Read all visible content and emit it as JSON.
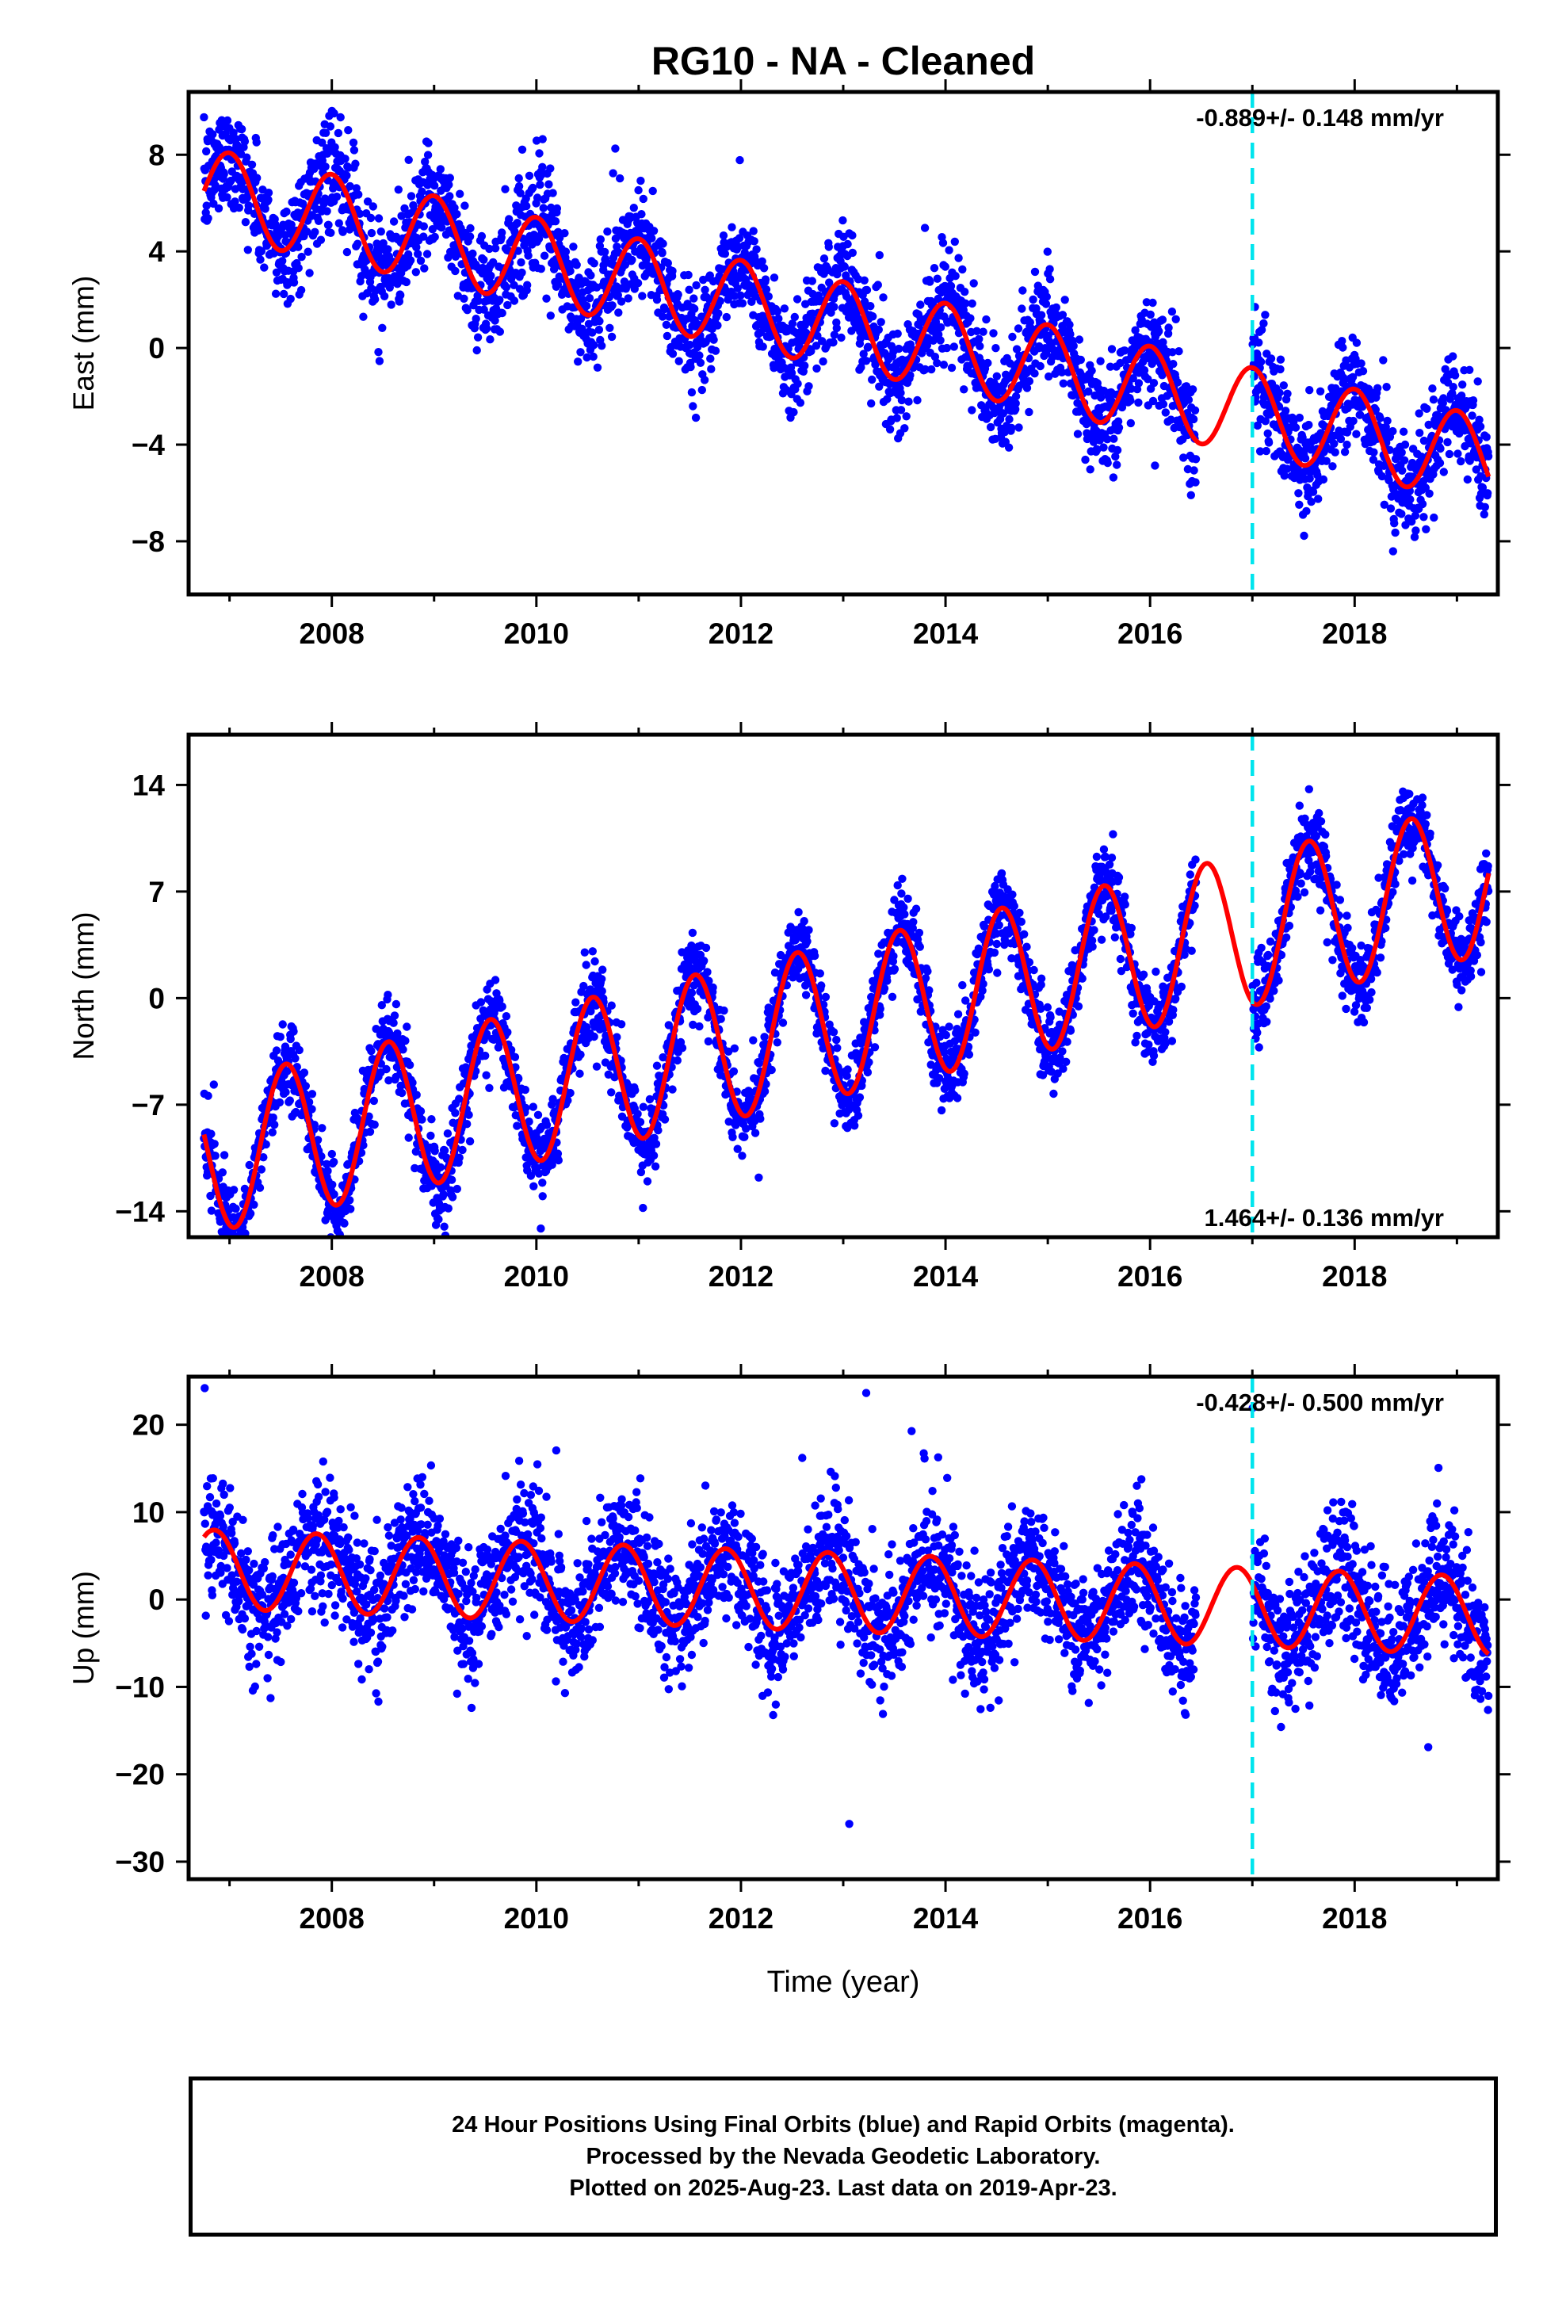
{
  "title": "RG10  - NA - Cleaned",
  "xlabel": "Time (year)",
  "colors": {
    "data": "#0000ff",
    "model": "#ff0000",
    "marker": "#00e5ee",
    "axis": "#000000"
  },
  "footer": {
    "line1": "24 Hour Positions Using Final Orbits (blue) and Rapid Orbits (magenta).",
    "line2": "Processed by the Nevada Geodetic Laboratory.",
    "line3": "Plotted on 2025-Aug-23. Last data on 2019-Apr-23."
  },
  "chart_data": [
    {
      "type": "scatter",
      "component": "east",
      "ylabel": "East (mm)",
      "rate_label": "-0.889+/- 0.148 mm/yr",
      "rate_position": "top-right",
      "xlim": [
        2006.6,
        2019.4
      ],
      "ylim": [
        -10.2,
        10.6
      ],
      "xticks": [
        2008,
        2010,
        2012,
        2014,
        2016,
        2018
      ],
      "yticks": [
        8,
        4,
        0,
        -4,
        -8
      ],
      "ytick_labels": [
        "8",
        "4",
        "0",
        "−4",
        "−8"
      ],
      "data_start": 2006.75,
      "data_end": 2019.31,
      "data_gap": [
        2016.45,
        2017.0
      ],
      "vertical_marker_x": 2017.0,
      "model": {
        "offset": 6.5,
        "trend": -0.889,
        "trend_epoch": 2006.75,
        "annual_amplitude": 1.8,
        "annual_peak": 2007.0
      },
      "series": [
        {
          "name": "Final Orbits",
          "color": "#0000ff"
        },
        {
          "name": "Model",
          "color": "#ff0000"
        }
      ]
    },
    {
      "type": "scatter",
      "component": "north",
      "ylabel": "North (mm)",
      "rate_label": "1.464+/- 0.136 mm/yr",
      "rate_position": "bottom-right",
      "xlim": [
        2006.6,
        2019.4
      ],
      "ylim": [
        -15.7,
        17.3
      ],
      "xticks": [
        2008,
        2010,
        2012,
        2014,
        2016,
        2018
      ],
      "yticks": [
        14,
        7,
        0,
        -7,
        -14
      ],
      "ytick_labels": [
        "14",
        "7",
        "0",
        "−7",
        "−14"
      ],
      "data_start": 2006.75,
      "data_end": 2019.31,
      "data_gap": [
        2016.45,
        2017.0
      ],
      "vertical_marker_x": 2017.0,
      "model": {
        "offset": -10.5,
        "trend": 1.464,
        "trend_epoch": 2006.75,
        "annual_amplitude": 5.0,
        "annual_peak": 2007.55
      },
      "series": [
        {
          "name": "Final Orbits",
          "color": "#0000ff"
        },
        {
          "name": "Model",
          "color": "#ff0000"
        }
      ]
    },
    {
      "type": "scatter",
      "component": "up",
      "ylabel": "Up (mm)",
      "rate_label": "-0.428+/- 0.500 mm/yr",
      "rate_position": "top-right",
      "xlim": [
        2006.6,
        2019.4
      ],
      "ylim": [
        -32,
        25.5
      ],
      "xticks": [
        2008,
        2010,
        2012,
        2014,
        2016,
        2018
      ],
      "yticks": [
        20,
        10,
        0,
        -10,
        -20,
        -30
      ],
      "ytick_labels": [
        "20",
        "10",
        "0",
        "−10",
        "−20",
        "−30"
      ],
      "data_start": 2006.75,
      "data_end": 2019.31,
      "data_gap": [
        2016.45,
        2017.0
      ],
      "vertical_marker_x": 2017.0,
      "model": {
        "offset": 3.5,
        "trend": -0.428,
        "trend_epoch": 2006.75,
        "annual_amplitude": 4.5,
        "annual_peak": 2007.85
      },
      "series": [
        {
          "name": "Final Orbits",
          "color": "#0000ff"
        },
        {
          "name": "Model",
          "color": "#ff0000"
        }
      ]
    }
  ]
}
